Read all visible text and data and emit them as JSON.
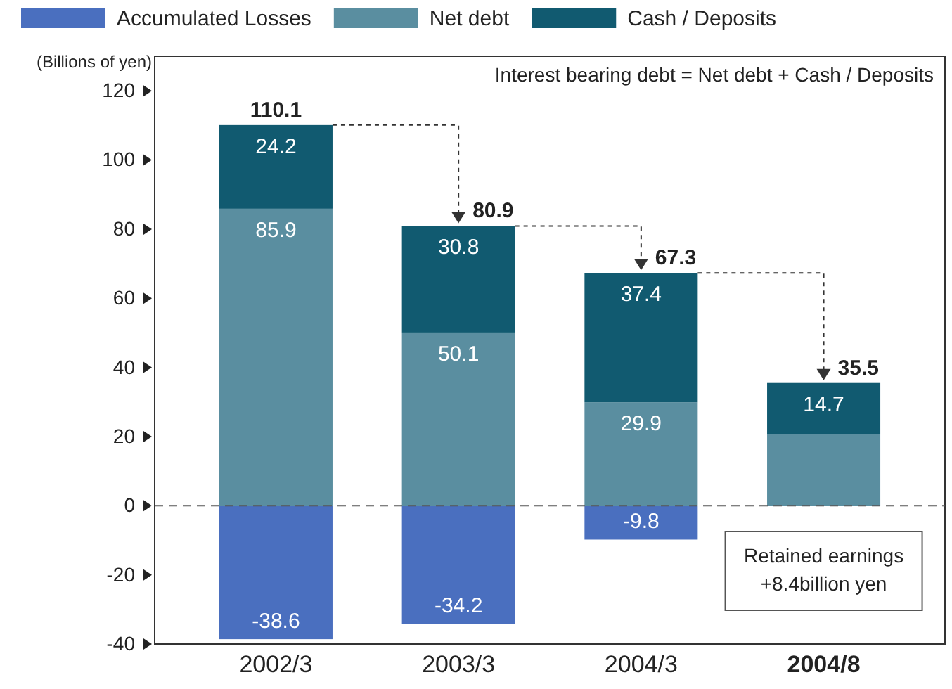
{
  "chart_data": {
    "type": "bar",
    "stacked": true,
    "categories": [
      "2002/3",
      "2003/3",
      "2004/3",
      "2004/8"
    ],
    "series": [
      {
        "name": "Accumulated Losses",
        "color": "#4a6fbf",
        "values": [
          -38.6,
          -34.2,
          -9.8,
          null
        ],
        "value_labels": [
          "-38.6",
          "-34.2",
          "-9.8",
          null
        ]
      },
      {
        "name": "Net debt",
        "color": "#5a8ea0",
        "values": [
          85.9,
          50.1,
          29.9,
          20.8
        ],
        "value_labels": [
          "85.9",
          "50.1",
          "29.9",
          null
        ]
      },
      {
        "name": "Cash / Deposits",
        "color": "#115a70",
        "values": [
          24.2,
          30.8,
          37.4,
          14.7
        ],
        "value_labels": [
          "24.2",
          "30.8",
          "37.4",
          "14.7"
        ]
      }
    ],
    "ylabel": "(Billions of yen)",
    "ylim": [
      -40,
      130
    ],
    "yticks": [
      -40,
      -20,
      0,
      20,
      40,
      60,
      80,
      100,
      120
    ],
    "ref_lines": [
      {
        "axis": "y",
        "value": 0,
        "line_style": "dashed",
        "color": "#555555"
      }
    ],
    "annotations": [
      "Interest bearing debt = Net debt + Cash / Deposits",
      "Retained earnings\n+8.4billion yen",
      {
        "text": "110.1",
        "x": "2002/3",
        "y": 110.1
      },
      {
        "text": "80.9",
        "x": "2003/3",
        "y": 80.9
      },
      {
        "text": "67.3",
        "x": "2004/3",
        "y": 67.3
      },
      {
        "text": "35.5",
        "x": "2004/8",
        "y": 35.5
      }
    ],
    "legend": "top left",
    "grid": false
  }
}
